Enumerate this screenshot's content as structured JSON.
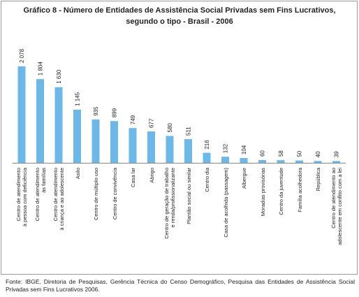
{
  "chart_data": {
    "type": "bar",
    "title": "Gráfico 8 - Número de Entidades de Assistência Social Privadas sem Fins Lucrativos,",
    "subtitle": "segundo o tipo - Brasil - 2006",
    "categories": [
      "Centro de atendimento\nà pessoa com deficiência",
      "Centro de  atendimento\nàs famílias",
      "Centro de atendimento\nà criança e ao adolescente",
      "Asilo",
      "Centro de múltiplo uso",
      "Centro de convivência",
      "Casa lar",
      "Abrigo",
      "Centro de geração de trabalho\ne renda/profissionalizante",
      "Plantão social ou similar",
      "Centro dia",
      "Casa de acolhida (passagem)",
      "Albergue",
      "Moradias provisórias",
      "Centro da juventude",
      "Família acolhedora",
      "República",
      "Centro de atendimento ao\nadolescente em conflito com a lei"
    ],
    "values": [
      2078,
      1804,
      1630,
      1145,
      935,
      899,
      749,
      677,
      580,
      511,
      216,
      132,
      104,
      60,
      58,
      50,
      40,
      39
    ],
    "value_labels": [
      "2 078",
      "1 804",
      "1 630",
      "1 145",
      "935",
      "899",
      "749",
      "677",
      "580",
      "511",
      "216",
      "132",
      "104",
      "60",
      "58",
      "50",
      "40",
      "39"
    ],
    "color": "#6cb8e8",
    "source": "Fonte: IBGE, Diretoria de Pesquisas, Gerência Técnica do Censo Demográfico, Pesquisa das Entidades de Assistência Social  Privadas sem Fins Lucrativos  2006."
  }
}
